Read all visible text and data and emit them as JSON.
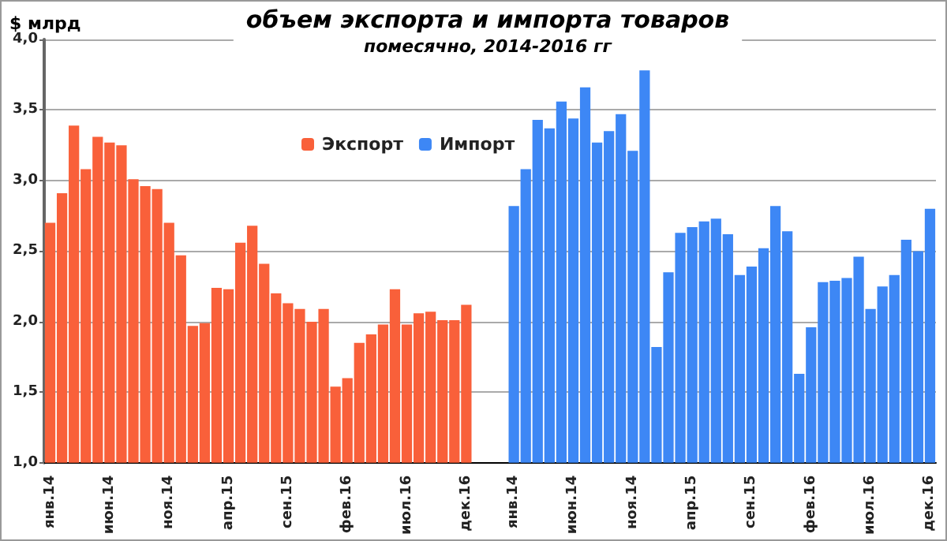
{
  "chart_data": {
    "type": "bar",
    "title": "объем экспорта и импорта товаров",
    "subtitle": "помесячно, 2014-2016 гг",
    "ylabel": "$ млрд",
    "categories": [
      "янв.14",
      null,
      null,
      null,
      null,
      "июн.14",
      null,
      null,
      null,
      null,
      "ноя.14",
      null,
      null,
      null,
      null,
      "апр.15",
      null,
      null,
      null,
      null,
      "сен.15",
      null,
      null,
      null,
      null,
      "фев.16",
      null,
      null,
      null,
      null,
      "июл.16",
      null,
      null,
      null,
      null,
      "дек.16",
      null,
      null,
      null,
      "янв.14",
      null,
      null,
      null,
      null,
      "июн.14",
      null,
      null,
      null,
      null,
      "ноя.14",
      null,
      null,
      null,
      null,
      "апр.15",
      null,
      null,
      null,
      null,
      "сен.15",
      null,
      null,
      null,
      null,
      "фев.16",
      null,
      null,
      null,
      null,
      "июл.16",
      null,
      null,
      null,
      null,
      "дек.16"
    ],
    "series": [
      {
        "name": "Экспорт",
        "color": "#f9603a",
        "values": [
          2.7,
          2.91,
          3.39,
          3.08,
          3.31,
          3.27,
          3.25,
          3.01,
          2.96,
          2.94,
          2.7,
          2.47,
          1.97,
          1.99,
          2.24,
          2.23,
          2.56,
          2.68,
          2.41,
          2.2,
          2.13,
          2.09,
          2.0,
          2.09,
          1.54,
          1.6,
          1.85,
          1.91,
          1.98,
          2.23,
          1.98,
          2.06,
          2.07,
          2.01,
          2.01,
          2.12,
          null,
          null,
          null,
          null,
          null,
          null,
          null,
          null,
          null,
          null,
          null,
          null,
          null,
          null,
          null,
          null,
          null,
          null,
          null,
          null,
          null,
          null,
          null,
          null,
          null,
          null,
          null,
          null,
          null,
          null,
          null,
          null,
          null,
          null,
          null,
          null,
          null,
          null,
          null
        ]
      },
      {
        "name": "Импорт",
        "color": "#3d87f5",
        "values": [
          null,
          null,
          null,
          null,
          null,
          null,
          null,
          null,
          null,
          null,
          null,
          null,
          null,
          null,
          null,
          null,
          null,
          null,
          null,
          null,
          null,
          null,
          null,
          null,
          null,
          null,
          null,
          null,
          null,
          null,
          null,
          null,
          null,
          null,
          null,
          null,
          null,
          null,
          null,
          2.82,
          3.08,
          3.43,
          3.37,
          3.56,
          3.44,
          3.66,
          3.27,
          3.35,
          3.47,
          3.21,
          3.78,
          1.82,
          2.35,
          2.63,
          2.67,
          2.71,
          2.73,
          2.62,
          2.33,
          2.39,
          2.52,
          2.82,
          2.64,
          1.63,
          1.96,
          2.28,
          2.29,
          2.31,
          2.46,
          2.09,
          2.25,
          2.33,
          2.58,
          2.5,
          2.8
        ]
      }
    ],
    "ylim": [
      1,
      4
    ],
    "yticks": [
      {
        "value": 1,
        "label": "1,0"
      },
      {
        "value": 1.5,
        "label": "1,5"
      },
      {
        "value": 2,
        "label": "2,0"
      },
      {
        "value": 2.5,
        "label": "2,5"
      },
      {
        "value": 3,
        "label": "3,0"
      },
      {
        "value": 3.5,
        "label": "3,5"
      },
      {
        "value": 4,
        "label": "4,0"
      }
    ],
    "grid": "y",
    "legend": "top"
  }
}
